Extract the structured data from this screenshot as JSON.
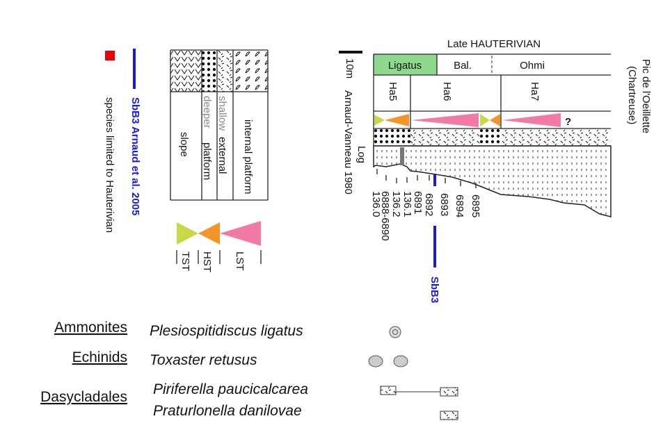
{
  "header": {
    "title": "Late HAUTERIVIAN",
    "locality": [
      "Pic de l'Oeillette",
      "(Chartreuse)"
    ],
    "scale": "10m"
  },
  "zones": [
    "Ligatus",
    "Bal.",
    "Ohmi"
  ],
  "sequences": [
    "Ha5",
    "Ha6",
    "Ha7"
  ],
  "uncertain": "?",
  "log_label": [
    "Log",
    "Arnaud-Vanneau 1980"
  ],
  "samples": [
    "136.0",
    "6888-6890",
    "136.2",
    "136.1",
    "6891",
    "6892",
    "6893",
    "6894",
    "6895"
  ],
  "sbb3": "SbB3",
  "legend": {
    "red": "species limited to Hauterivian",
    "blue": "SbB3 Arnaud et al. 2005",
    "facies": [
      "slope",
      "deeper",
      "platform",
      "shallow",
      "external",
      "internal platform"
    ],
    "systems_tracts": [
      "TST",
      "HST",
      "LST"
    ]
  },
  "fossils": {
    "groups": [
      {
        "name": "Ammonites",
        "species": [
          "Plesiospitidiscus ligatus"
        ]
      },
      {
        "name": "Echinids",
        "species": [
          "Toxaster retusus"
        ]
      },
      {
        "name": "Dasycladales",
        "species": [
          "Piriferella paucicalcarea",
          "Praturlonella danilovae"
        ]
      }
    ]
  }
}
